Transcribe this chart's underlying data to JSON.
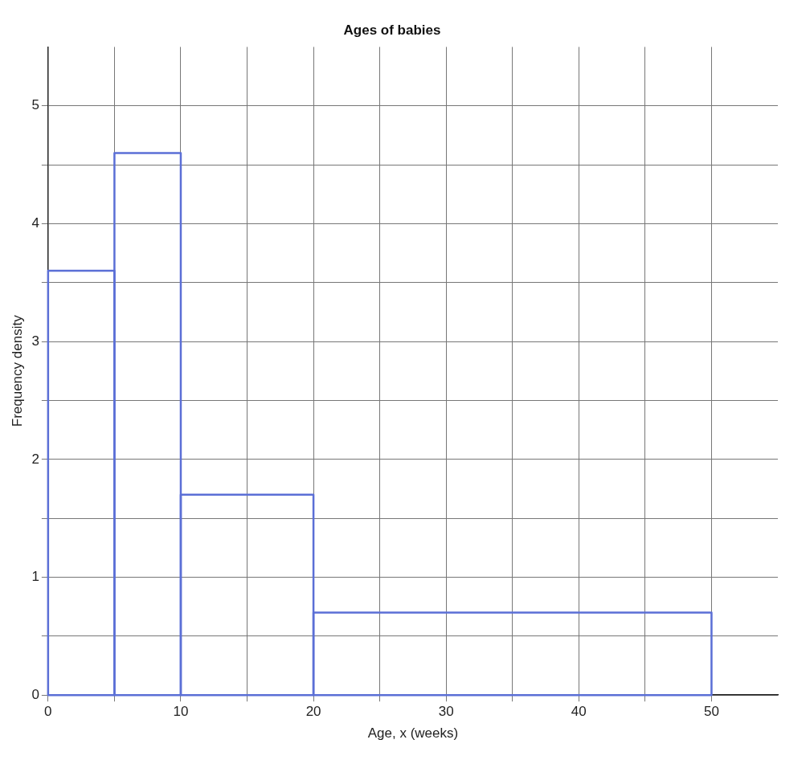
{
  "chart_data": {
    "type": "histogram",
    "title": "Ages of babies",
    "xlabel": "Age, x (weeks)",
    "ylabel": "Frequency density",
    "bins": [
      0,
      5,
      10,
      20,
      50
    ],
    "values": [
      3.6,
      4.6,
      1.7,
      0.7
    ],
    "color": "#5b6fd6",
    "xlim": [
      0,
      55
    ],
    "xticks": [
      0,
      {
        "value": 5,
        "label": null
      },
      10,
      {
        "value": 15,
        "label": null
      },
      20,
      {
        "value": 25,
        "label": null
      },
      30,
      {
        "value": 35,
        "label": null
      },
      40,
      {
        "value": 45,
        "label": null
      },
      50
    ],
    "ylim": [
      0,
      5.5
    ],
    "yticks": [
      0,
      {
        "value": 0.5,
        "label": null
      },
      1,
      {
        "value": 1.5,
        "label": null
      },
      2,
      {
        "value": 2.5,
        "label": null
      },
      3,
      {
        "value": 3.5,
        "label": null
      },
      4,
      {
        "value": 4.5,
        "label": null
      },
      5
    ],
    "grid": true
  }
}
